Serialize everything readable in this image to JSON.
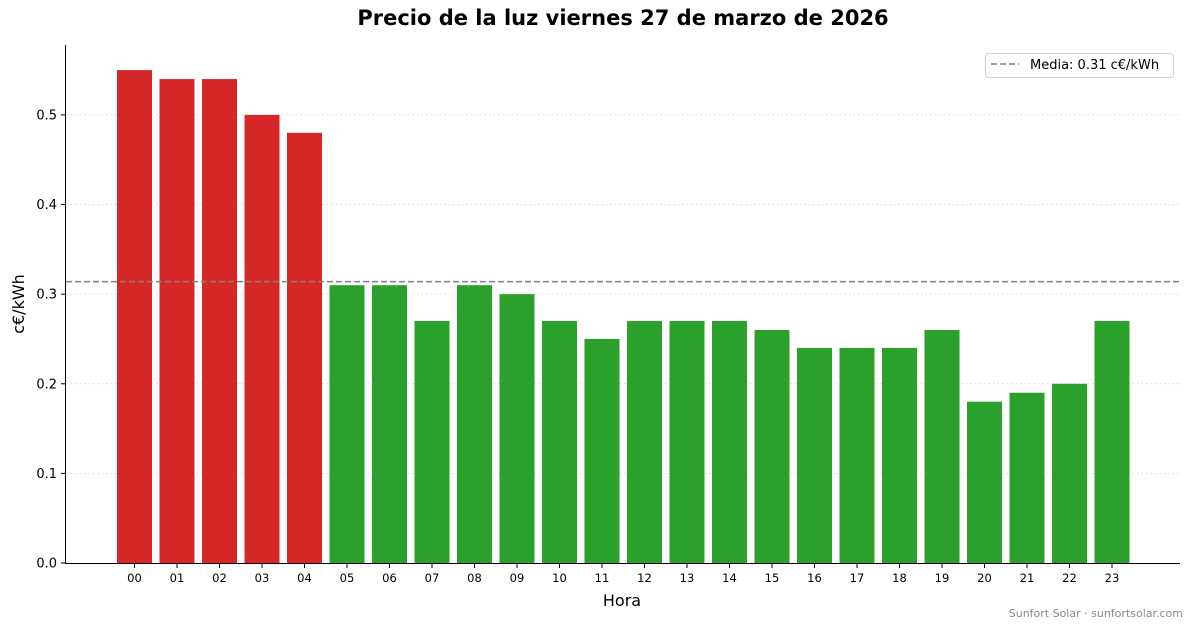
{
  "chart_data": {
    "type": "bar",
    "title": "Precio de la luz viernes 27 de marzo de 2026",
    "xlabel": "Hora",
    "ylabel": "c€/kWh",
    "categories": [
      "00",
      "01",
      "02",
      "03",
      "04",
      "05",
      "06",
      "07",
      "08",
      "09",
      "10",
      "11",
      "12",
      "13",
      "14",
      "15",
      "16",
      "17",
      "18",
      "19",
      "20",
      "21",
      "22",
      "23"
    ],
    "values": [
      0.55,
      0.54,
      0.54,
      0.5,
      0.48,
      0.31,
      0.31,
      0.27,
      0.31,
      0.3,
      0.27,
      0.25,
      0.27,
      0.27,
      0.27,
      0.26,
      0.24,
      0.24,
      0.24,
      0.26,
      0.18,
      0.19,
      0.2,
      0.27
    ],
    "bar_colors": [
      "#d62728",
      "#d62728",
      "#d62728",
      "#d62728",
      "#d62728",
      "#2ca02c",
      "#2ca02c",
      "#2ca02c",
      "#2ca02c",
      "#2ca02c",
      "#2ca02c",
      "#2ca02c",
      "#2ca02c",
      "#2ca02c",
      "#2ca02c",
      "#2ca02c",
      "#2ca02c",
      "#2ca02c",
      "#2ca02c",
      "#2ca02c",
      "#2ca02c",
      "#2ca02c",
      "#2ca02c",
      "#2ca02c"
    ],
    "ylim": [
      0,
      0.578
    ],
    "yticks": [
      0.0,
      0.1,
      0.2,
      0.3,
      0.4,
      0.5
    ],
    "ytick_labels": [
      "0.0",
      "0.1",
      "0.2",
      "0.3",
      "0.4",
      "0.5"
    ],
    "mean_value": 0.314,
    "legend": {
      "label": "Media: 0.31 c€/kWh",
      "location": "top-right"
    },
    "grid": {
      "y": true,
      "style": "dotted"
    },
    "colors": {
      "high": "#d62728",
      "low": "#2ca02c",
      "mean_line": "#808080"
    }
  },
  "footer": {
    "text": "Sunfort Solar · sunfortsolar.com"
  }
}
